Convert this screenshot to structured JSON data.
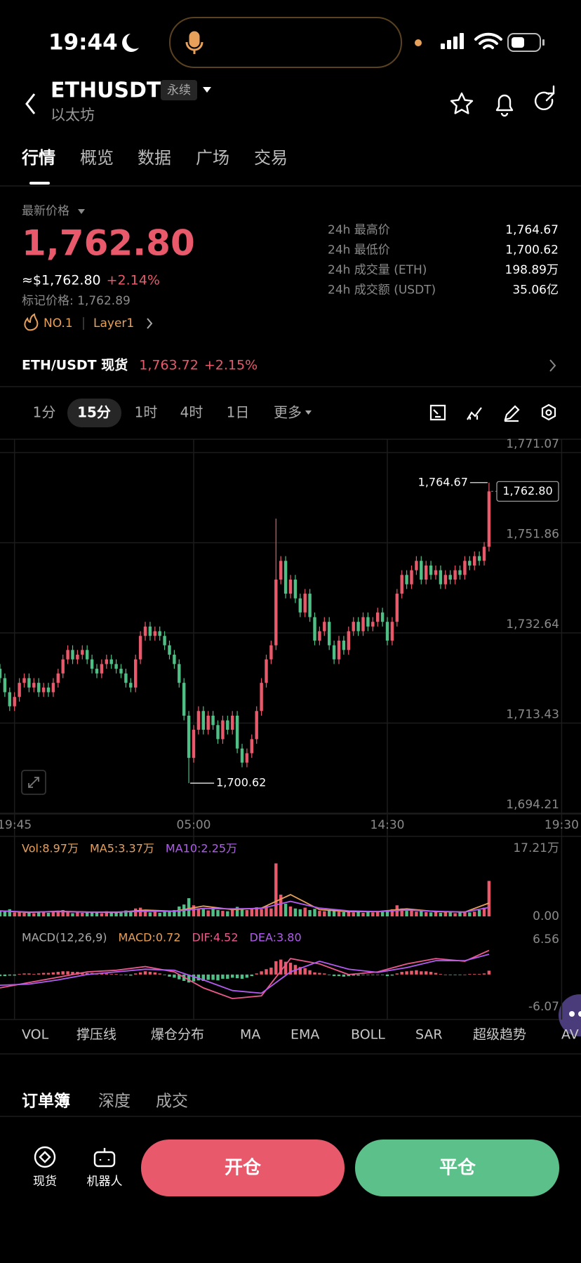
{
  "status_bar": {
    "time": "19:44"
  },
  "header": {
    "symbol": "ETHUSDT",
    "tag": "永续",
    "name": "以太坊"
  },
  "tabs": [
    "行情",
    "概览",
    "数据",
    "广场",
    "交易"
  ],
  "price": {
    "label": "最新价格",
    "last": "1,762.80",
    "usd": "≈$1,762.80",
    "change": "+2.14%",
    "mark": "标记价格: 1,762.89",
    "rank": "NO.1",
    "sector": "Layer1"
  },
  "stats": [
    {
      "label": "24h 最高价",
      "value": "1,764.67"
    },
    {
      "label": "24h 最低价",
      "value": "1,700.62"
    },
    {
      "label": "24h 成交量 (ETH)",
      "value": "198.89万"
    },
    {
      "label": "24h 成交额 (USDT)",
      "value": "35.06亿"
    }
  ],
  "spot": {
    "pair": "ETH/USDT 现货",
    "price": "1,763.72",
    "change": "+2.15%"
  },
  "intervals": [
    "1分",
    "15分",
    "1时",
    "4时",
    "1日",
    "更多"
  ],
  "chart_data": [
    {
      "type": "candlestick",
      "up_color": "#e85a6b",
      "down_color": "#4fbf86",
      "grid": true,
      "xlim": [
        0,
        120
      ],
      "xticks": [
        {
          "value": 3,
          "label": "19:45"
        },
        {
          "value": 40,
          "label": "05:00"
        },
        {
          "value": 80,
          "label": "14:30"
        },
        {
          "value": 116,
          "label": "19:30"
        }
      ],
      "ylim": [
        1694.21,
        1771.07
      ],
      "yticks": [
        {
          "value": 1694.21,
          "label": "1,694.21"
        },
        {
          "value": 1713.43,
          "label": "1,713.43"
        },
        {
          "value": 1732.64,
          "label": "1,732.64"
        },
        {
          "value": 1751.86,
          "label": "1,751.86"
        },
        {
          "value": 1771.07,
          "label": "1,771.07"
        }
      ],
      "annotations": {
        "high": "1,764.67",
        "low": "1,700.62",
        "last": "1,762.80"
      },
      "open": [
        1725,
        1723,
        1720,
        1717,
        1719,
        1722,
        1723,
        1721,
        1722,
        1720,
        1721,
        1720,
        1722,
        1724,
        1727,
        1729,
        1727,
        1728,
        1729,
        1727,
        1725,
        1724,
        1726,
        1727,
        1726,
        1725,
        1724,
        1722,
        1721,
        1727,
        1732,
        1734,
        1732,
        1733,
        1732,
        1730,
        1728,
        1726,
        1722,
        1715,
        1706,
        1712,
        1716,
        1712,
        1715,
        1713,
        1710,
        1714,
        1712,
        1715,
        1708,
        1705,
        1707,
        1710,
        1716,
        1722,
        1727,
        1730,
        1744,
        1748,
        1741,
        1744,
        1740,
        1737,
        1741,
        1736,
        1731,
        1733,
        1735,
        1730,
        1727,
        1731,
        1729,
        1733,
        1735,
        1733,
        1736,
        1734,
        1735,
        1737,
        1735,
        1731,
        1735,
        1741,
        1745,
        1743,
        1746,
        1748,
        1744,
        1747,
        1745,
        1746,
        1743,
        1745,
        1744,
        1746,
        1745,
        1748,
        1747,
        1749,
        1748,
        1751
      ],
      "high": [
        1726,
        1724,
        1721,
        1720,
        1723,
        1724,
        1724,
        1723,
        1723,
        1722,
        1722,
        1723,
        1725,
        1728,
        1730,
        1730,
        1729,
        1730,
        1730,
        1728,
        1726,
        1727,
        1728,
        1728,
        1727,
        1726,
        1725,
        1723,
        1728,
        1733,
        1735,
        1735,
        1734,
        1734,
        1733,
        1731,
        1729,
        1727,
        1723,
        1716,
        1713,
        1717,
        1717,
        1716,
        1716,
        1714,
        1715,
        1715,
        1716,
        1716,
        1709,
        1708,
        1711,
        1717,
        1723,
        1728,
        1731,
        1757,
        1749,
        1749,
        1745,
        1745,
        1741,
        1742,
        1742,
        1737,
        1734,
        1736,
        1736,
        1731,
        1732,
        1732,
        1734,
        1736,
        1736,
        1737,
        1737,
        1736,
        1738,
        1738,
        1736,
        1736,
        1742,
        1746,
        1746,
        1747,
        1749,
        1749,
        1748,
        1748,
        1747,
        1747,
        1746,
        1746,
        1747,
        1747,
        1749,
        1749,
        1750,
        1750,
        1752,
        1764.67
      ],
      "low": [
        1722,
        1719,
        1716,
        1716,
        1718,
        1721,
        1720,
        1720,
        1719,
        1719,
        1719,
        1719,
        1721,
        1723,
        1726,
        1726,
        1726,
        1727,
        1726,
        1724,
        1723,
        1723,
        1725,
        1725,
        1724,
        1723,
        1721,
        1720,
        1720,
        1726,
        1731,
        1731,
        1731,
        1731,
        1729,
        1727,
        1725,
        1721,
        1714,
        1700.62,
        1705,
        1711,
        1711,
        1711,
        1712,
        1709,
        1709,
        1711,
        1711,
        1707,
        1704,
        1704,
        1706,
        1709,
        1715,
        1721,
        1726,
        1729,
        1743,
        1740,
        1740,
        1739,
        1736,
        1736,
        1735,
        1730,
        1730,
        1732,
        1729,
        1726,
        1726,
        1728,
        1728,
        1732,
        1732,
        1732,
        1733,
        1733,
        1734,
        1734,
        1730,
        1730,
        1734,
        1740,
        1742,
        1742,
        1745,
        1743,
        1743,
        1744,
        1744,
        1742,
        1742,
        1743,
        1743,
        1744,
        1744,
        1746,
        1746,
        1747,
        1747,
        1750
      ],
      "close": [
        1723,
        1720,
        1717,
        1719,
        1722,
        1723,
        1721,
        1722,
        1720,
        1721,
        1720,
        1722,
        1724,
        1727,
        1729,
        1727,
        1728,
        1729,
        1727,
        1725,
        1724,
        1726,
        1727,
        1726,
        1725,
        1724,
        1722,
        1721,
        1727,
        1732,
        1734,
        1732,
        1733,
        1732,
        1730,
        1728,
        1726,
        1722,
        1715,
        1706,
        1712,
        1716,
        1712,
        1715,
        1713,
        1710,
        1714,
        1712,
        1715,
        1708,
        1705,
        1707,
        1710,
        1716,
        1722,
        1727,
        1730,
        1744,
        1748,
        1741,
        1744,
        1740,
        1737,
        1741,
        1736,
        1731,
        1733,
        1735,
        1730,
        1727,
        1731,
        1729,
        1733,
        1735,
        1733,
        1736,
        1734,
        1735,
        1737,
        1735,
        1731,
        1735,
        1741,
        1745,
        1743,
        1746,
        1748,
        1744,
        1747,
        1745,
        1746,
        1743,
        1745,
        1744,
        1746,
        1745,
        1748,
        1747,
        1749,
        1748,
        1751,
        1762.8
      ]
    },
    {
      "type": "bar",
      "label": "Vol:8.97万",
      "label_color": "#e8a15a",
      "ylim": [
        0,
        17.21
      ],
      "yticks": [
        {
          "value": 17.21,
          "label": "17.21万"
        },
        {
          "value": 0,
          "label": "0.00"
        }
      ],
      "values": [
        1.5,
        1.2,
        1.8,
        1.0,
        1.3,
        0.9,
        1.1,
        0.8,
        1.2,
        1.0,
        0.9,
        1.4,
        1.1,
        1.6,
        1.3,
        0.8,
        1.0,
        0.9,
        1.2,
        1.1,
        1.0,
        0.8,
        1.3,
        0.9,
        1.1,
        1.0,
        1.5,
        1.2,
        2.0,
        2.2,
        1.5,
        1.0,
        1.3,
        0.9,
        1.2,
        1.4,
        1.6,
        2.5,
        3.0,
        4.6,
        2.8,
        2.0,
        1.8,
        1.5,
        2.2,
        1.6,
        1.4,
        1.3,
        2.0,
        2.4,
        1.9,
        1.6,
        2.0,
        2.3,
        1.8,
        2.6,
        2.0,
        13.4,
        5.5,
        3.2,
        2.5,
        2.0,
        1.8,
        2.2,
        1.6,
        1.9,
        1.4,
        1.3,
        1.5,
        1.7,
        1.2,
        1.1,
        1.3,
        1.0,
        1.2,
        0.9,
        1.1,
        1.0,
        1.4,
        1.3,
        1.5,
        1.8,
        2.8,
        2.0,
        1.4,
        1.6,
        1.2,
        1.5,
        1.1,
        1.0,
        1.3,
        0.9,
        1.2,
        1.0,
        0.8,
        1.1,
        1.3,
        1.0,
        1.2,
        1.6,
        2.2,
        8.97
      ],
      "line_x": [
        0,
        6,
        12,
        18,
        24,
        30,
        36,
        42,
        48,
        54,
        60,
        66,
        72,
        78,
        84,
        90,
        96,
        101
      ],
      "series": [
        {
          "name": "MA5:3.37万",
          "color": "#e8a15a",
          "values": [
            1.4,
            1.0,
            1.3,
            1.1,
            1.0,
            1.6,
            1.3,
            2.6,
            1.7,
            2.1,
            5.5,
            1.7,
            1.2,
            1.2,
            1.9,
            1.2,
            1.1,
            3.37
          ]
        },
        {
          "name": "MA10:2.25万",
          "color": "#b35cf0",
          "values": [
            1.4,
            1.1,
            1.2,
            1.1,
            1.1,
            1.3,
            1.3,
            2.0,
            1.9,
            2.0,
            3.8,
            2.1,
            1.4,
            1.2,
            1.6,
            1.3,
            1.1,
            2.25
          ]
        }
      ]
    },
    {
      "type": "bar",
      "title": "MACD(12,26,9)",
      "label": "MACD:0.72",
      "label_color": "#e8a15a",
      "ylim": [
        -6.07,
        6.56
      ],
      "yticks": [
        6.56,
        -6.07
      ],
      "values": [
        -0.3,
        -0.3,
        -0.2,
        -0.2,
        0.1,
        0.2,
        0.2,
        0.1,
        0.2,
        0.3,
        0.3,
        0.4,
        0.5,
        0.6,
        0.6,
        0.5,
        0.5,
        0.4,
        0.3,
        0.3,
        0.2,
        0.2,
        0.2,
        0.1,
        0.1,
        0.0,
        -0.1,
        -0.2,
        0.2,
        0.4,
        0.6,
        0.5,
        0.4,
        0.2,
        -0.1,
        -0.4,
        -0.6,
        -0.9,
        -1.2,
        -1.5,
        -1.3,
        -1.1,
        -1.2,
        -1.0,
        -1.0,
        -1.1,
        -0.8,
        -0.8,
        -0.6,
        -0.7,
        -0.8,
        -0.6,
        -0.3,
        0.2,
        0.6,
        1.0,
        1.3,
        2.5,
        2.8,
        2.4,
        2.2,
        1.8,
        1.4,
        1.2,
        0.8,
        0.4,
        0.3,
        0.2,
        -0.1,
        -0.3,
        -0.3,
        -0.4,
        -0.3,
        -0.2,
        -0.2,
        -0.1,
        -0.1,
        -0.1,
        0.0,
        -0.1,
        -0.3,
        -0.2,
        0.2,
        0.5,
        0.6,
        0.7,
        0.8,
        0.6,
        0.6,
        0.5,
        0.3,
        0.1,
        0.0,
        -0.1,
        -0.1,
        -0.1,
        0.0,
        0.1,
        0.1,
        0.1,
        0.2,
        0.72
      ],
      "line_x": [
        0,
        6,
        12,
        18,
        24,
        30,
        36,
        42,
        48,
        54,
        60,
        66,
        72,
        78,
        84,
        90,
        96,
        101
      ],
      "series": [
        {
          "name": "DIF:4.52",
          "color": "#ea5a8c",
          "values": [
            -2.5,
            -1.5,
            -0.5,
            0.5,
            0.8,
            1.5,
            0.5,
            -2.5,
            -4.5,
            -4.0,
            3.0,
            2.0,
            0.0,
            0.5,
            2.0,
            3.0,
            2.5,
            4.52
          ]
        },
        {
          "name": "DEA:3.80",
          "color": "#b35cf0",
          "values": [
            -2.0,
            -1.8,
            -1.0,
            0.0,
            0.5,
            1.0,
            0.8,
            -1.0,
            -3.0,
            -3.5,
            0.5,
            2.5,
            1.0,
            0.4,
            1.3,
            2.6,
            2.6,
            3.8
          ]
        }
      ]
    }
  ],
  "indicators": [
    "VOL",
    "撑压线",
    "爆仓分布",
    "MA",
    "EMA",
    "BOLL",
    "SAR",
    "超级趋势",
    "AV"
  ],
  "book_tabs": [
    "订单簿",
    "深度",
    "成交"
  ],
  "bottom": {
    "spot": "现货",
    "robot": "机器人",
    "open": "开仓",
    "close": "平仓"
  }
}
